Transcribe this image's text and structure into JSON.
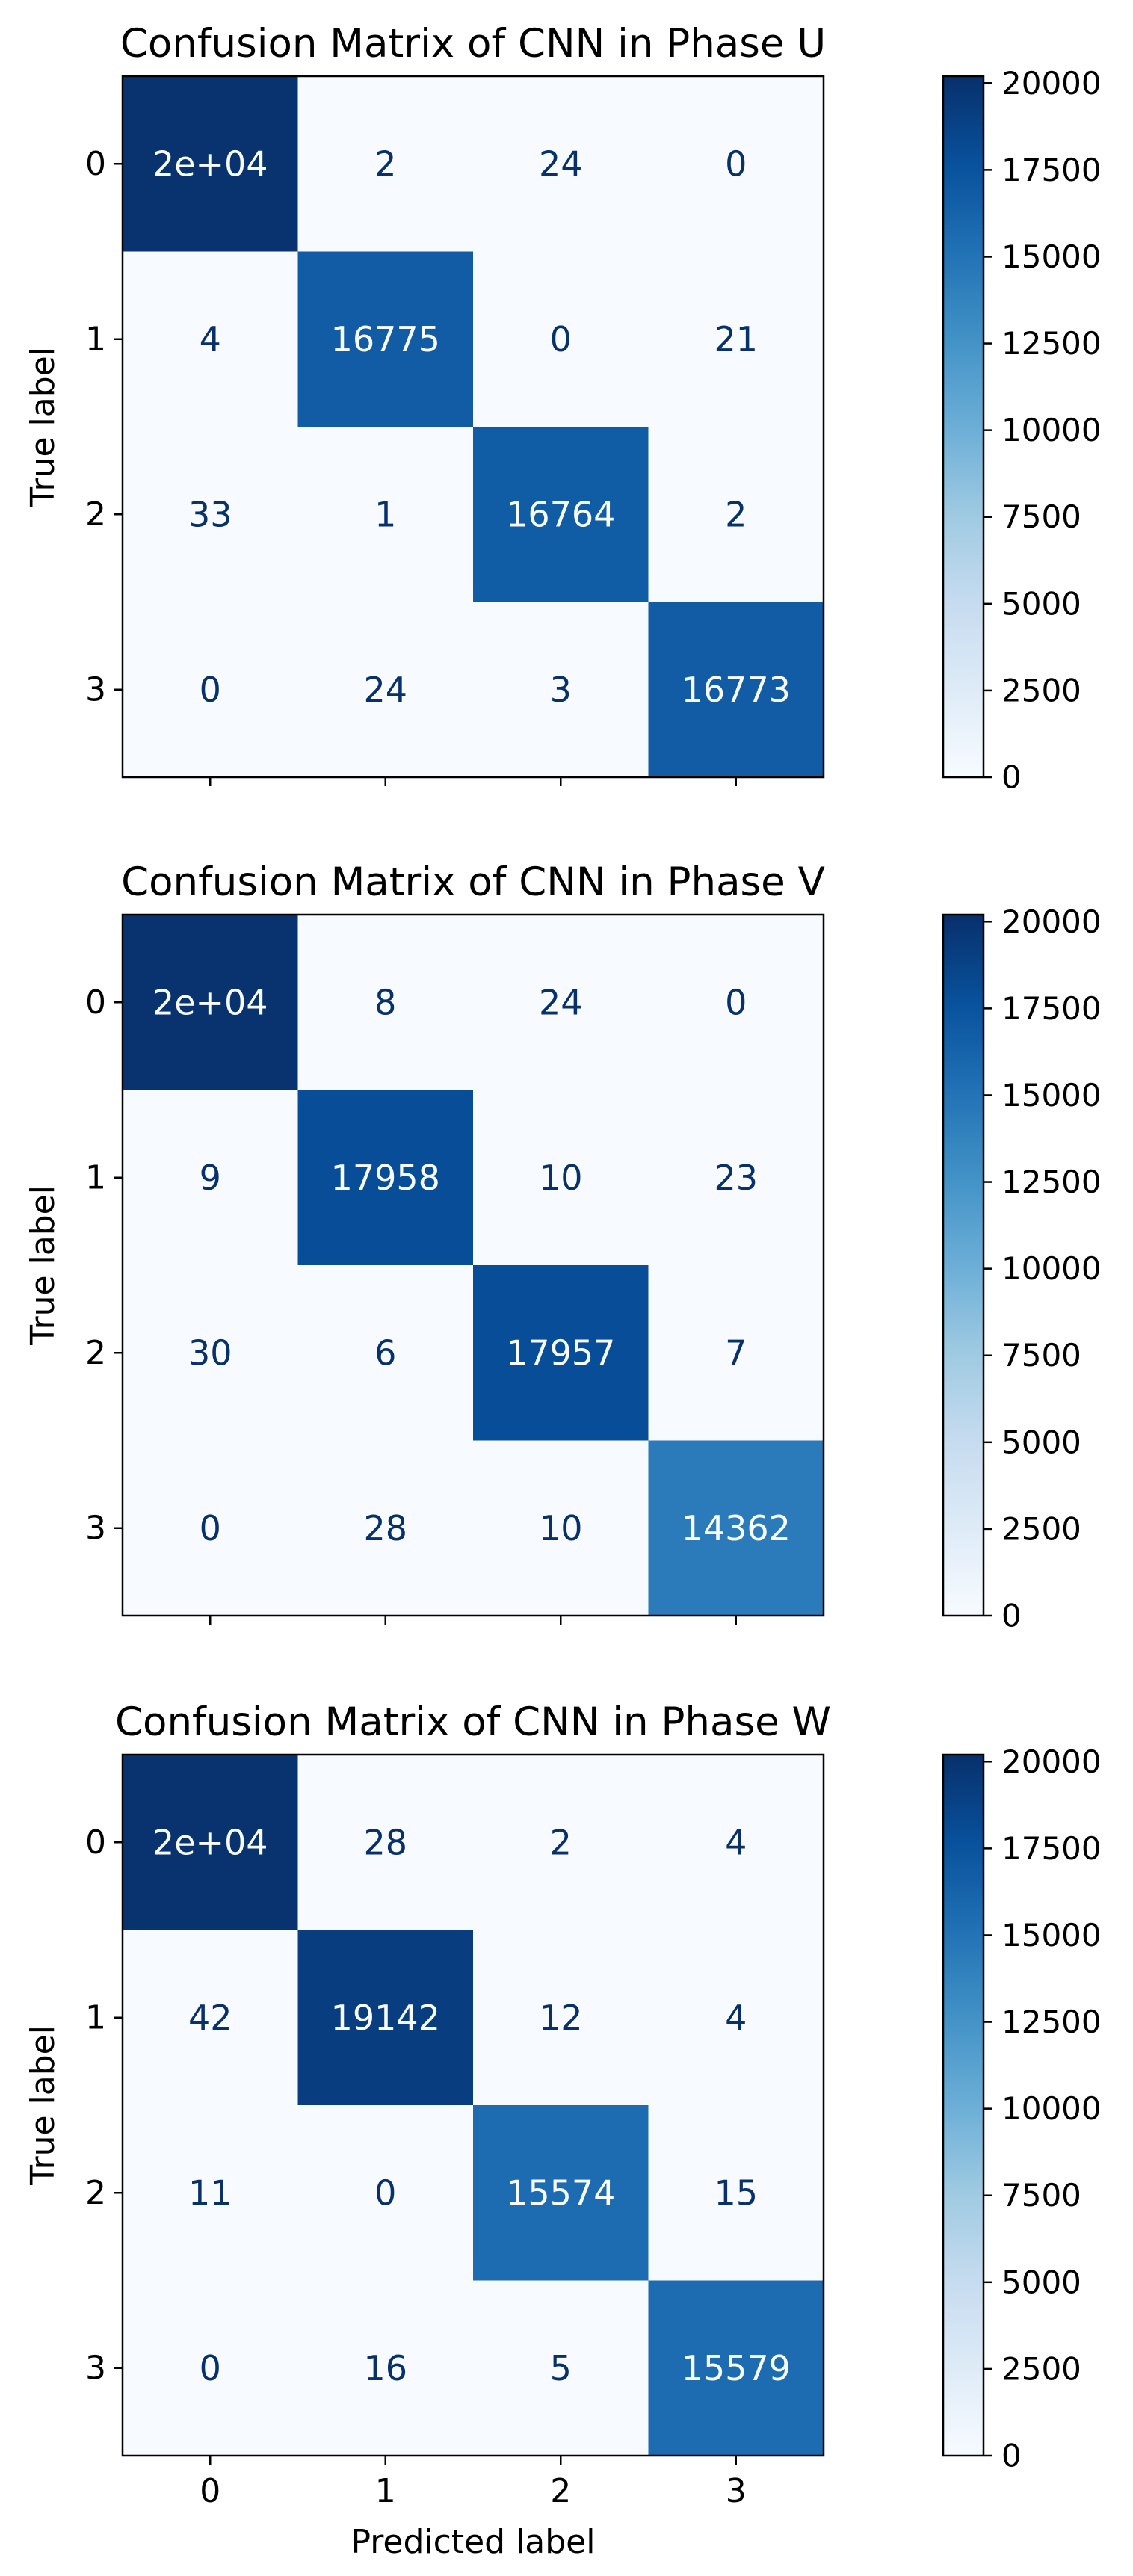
{
  "chart_data": [
    {
      "type": "heatmap",
      "title": "Confusion Matrix of CNN in Phase U",
      "ylabel": "True label",
      "xlabel": "",
      "x_tick_labels": [
        "",
        "",
        "",
        ""
      ],
      "y_tick_labels": [
        "0",
        "1",
        "2",
        "3"
      ],
      "categories": [
        "0",
        "1",
        "2",
        "3"
      ],
      "matrix": [
        [
          20000,
          2,
          24,
          0
        ],
        [
          4,
          16775,
          0,
          21
        ],
        [
          33,
          1,
          16764,
          2
        ],
        [
          0,
          24,
          3,
          16773
        ]
      ],
      "cell_labels": [
        [
          "2e+04",
          "2",
          "24",
          "0"
        ],
        [
          "4",
          "16775",
          "0",
          "21"
        ],
        [
          "33",
          "1",
          "16764",
          "2"
        ],
        [
          "0",
          "24",
          "3",
          "16773"
        ]
      ],
      "colorbar_ticks": [
        "0",
        "2500",
        "5000",
        "7500",
        "10000",
        "12500",
        "15000",
        "17500",
        "20000"
      ],
      "colorbar_range": [
        0,
        20200
      ],
      "colormap": "Blues"
    },
    {
      "type": "heatmap",
      "title": "Confusion Matrix of CNN in Phase V",
      "ylabel": "True label",
      "xlabel": "",
      "x_tick_labels": [
        "",
        "",
        "",
        ""
      ],
      "y_tick_labels": [
        "0",
        "1",
        "2",
        "3"
      ],
      "categories": [
        "0",
        "1",
        "2",
        "3"
      ],
      "matrix": [
        [
          20000,
          8,
          24,
          0
        ],
        [
          9,
          17958,
          10,
          23
        ],
        [
          30,
          6,
          17957,
          7
        ],
        [
          0,
          28,
          10,
          14362
        ]
      ],
      "cell_labels": [
        [
          "2e+04",
          "8",
          "24",
          "0"
        ],
        [
          "9",
          "17958",
          "10",
          "23"
        ],
        [
          "30",
          "6",
          "17957",
          "7"
        ],
        [
          "0",
          "28",
          "10",
          "14362"
        ]
      ],
      "colorbar_ticks": [
        "0",
        "2500",
        "5000",
        "7500",
        "10000",
        "12500",
        "15000",
        "17500",
        "20000"
      ],
      "colorbar_range": [
        0,
        20200
      ],
      "colormap": "Blues"
    },
    {
      "type": "heatmap",
      "title": "Confusion Matrix of CNN in Phase W",
      "ylabel": "True label",
      "xlabel": "Predicted label",
      "x_tick_labels": [
        "0",
        "1",
        "2",
        "3"
      ],
      "y_tick_labels": [
        "0",
        "1",
        "2",
        "3"
      ],
      "categories": [
        "0",
        "1",
        "2",
        "3"
      ],
      "matrix": [
        [
          20000,
          28,
          2,
          4
        ],
        [
          42,
          19142,
          12,
          4
        ],
        [
          11,
          0,
          15574,
          15
        ],
        [
          0,
          16,
          5,
          15579
        ]
      ],
      "cell_labels": [
        [
          "2e+04",
          "28",
          "2",
          "4"
        ],
        [
          "42",
          "19142",
          "12",
          "4"
        ],
        [
          "11",
          "0",
          "15574",
          "15"
        ],
        [
          "0",
          "16",
          "5",
          "15579"
        ]
      ],
      "colorbar_ticks": [
        "0",
        "2500",
        "5000",
        "7500",
        "10000",
        "12500",
        "15000",
        "17500",
        "20000"
      ],
      "colorbar_range": [
        0,
        20200
      ],
      "colormap": "Blues"
    }
  ]
}
